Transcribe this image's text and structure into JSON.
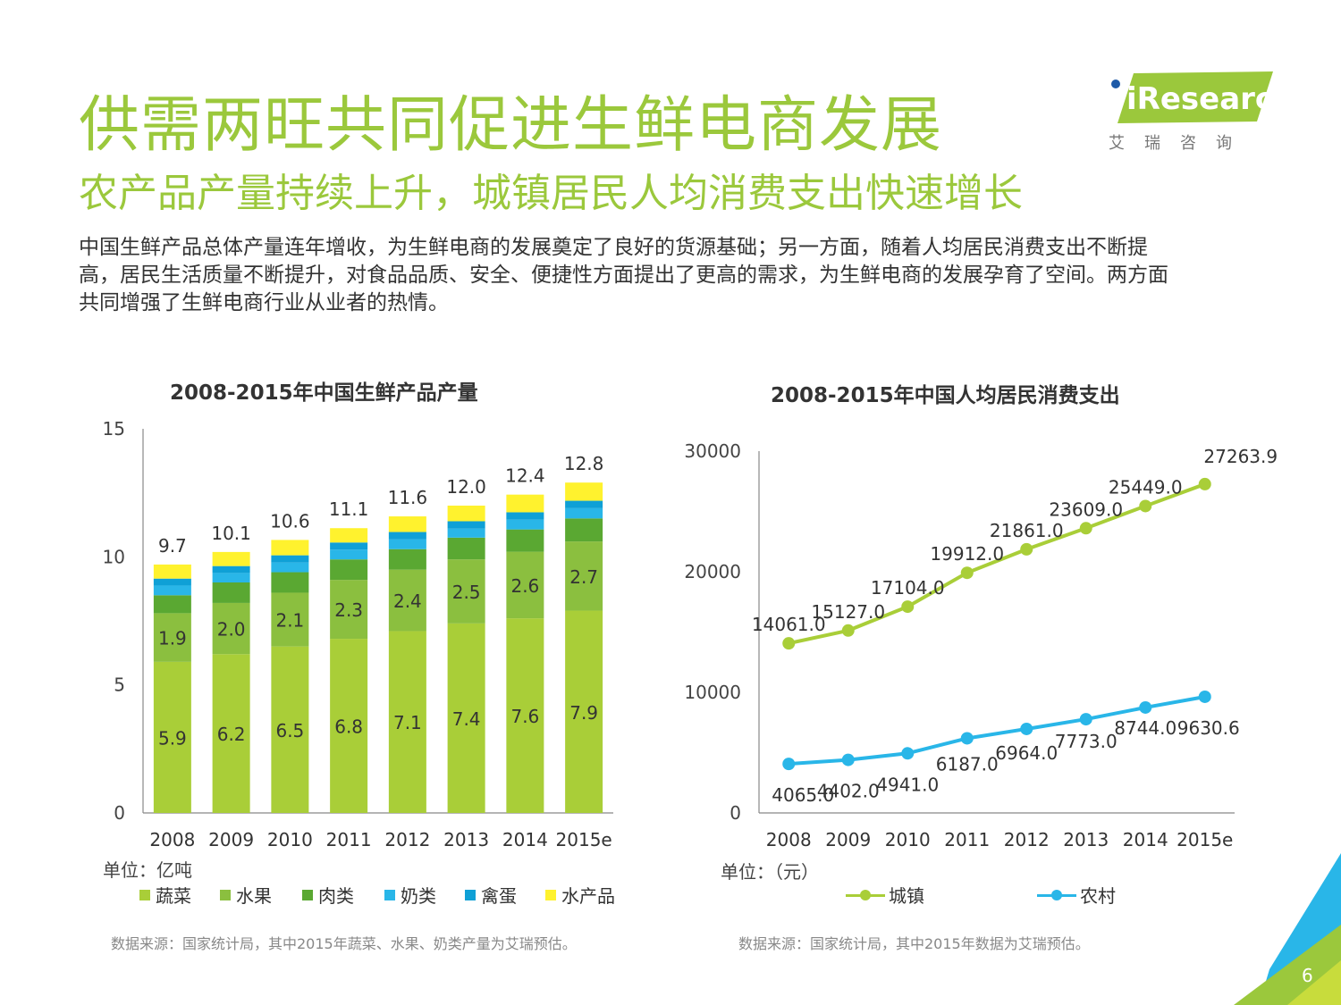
{
  "header": {
    "title": "供需两旺共同促进生鲜电商发展",
    "subtitle": "农产品产量持续上升，城镇居民人均消费支出快速增长",
    "paragraph_lines": [
      "中国生鲜产品总体产量连年增收，为生鲜电商的发展奠定了良好的货源基础；另一方面，随着人均居民消费支出不断提",
      "高，居民生活质量不断提升，对食品品质、安全、便捷性方面提出了更高的需求，为生鲜电商的发展孕育了空间。两方面",
      "共同增强了生鲜电商行业从业者的热情。"
    ]
  },
  "logo": {
    "text": "iResearch",
    "subtext": "艾瑞咨询"
  },
  "colors": {
    "accent": "#9bc83c",
    "vegetables": "#a9ce38",
    "fruit": "#8bbf3f",
    "meat": "#5aa832",
    "dairy": "#29b6e8",
    "eggs": "#0fa0d6",
    "aquatic": "#fff22e",
    "urban": "#a9ce38",
    "rural": "#29b6e8"
  },
  "page_number": "6",
  "left": {
    "unit": "单位：亿吨",
    "source": "数据来源：国家统计局，其中2015年蔬菜、水果、奶类产量为艾瑞预估。"
  },
  "right": {
    "unit": "单位：（元）",
    "source": "数据来源：国家统计局，其中2015年数据为艾瑞预估。"
  },
  "chart_data": [
    {
      "type": "bar",
      "stacked": true,
      "title": "2008-2015年中国生鲜产品产量",
      "categories": [
        "2008",
        "2009",
        "2010",
        "2011",
        "2012",
        "2013",
        "2014",
        "2015e"
      ],
      "ylim": [
        0,
        15
      ],
      "yticks": [
        0,
        5,
        10,
        15
      ],
      "series": [
        {
          "name": "蔬菜",
          "values": [
            5.9,
            6.2,
            6.5,
            6.8,
            7.1,
            7.4,
            7.6,
            7.9
          ],
          "labeled": true
        },
        {
          "name": "水果",
          "values": [
            1.9,
            2.0,
            2.1,
            2.3,
            2.4,
            2.5,
            2.6,
            2.7
          ],
          "labeled": true
        },
        {
          "name": "肉类",
          "values": [
            0.7,
            0.8,
            0.8,
            0.8,
            0.8,
            0.85,
            0.87,
            0.9
          ],
          "labeled": false
        },
        {
          "name": "奶类",
          "values": [
            0.38,
            0.37,
            0.38,
            0.38,
            0.38,
            0.35,
            0.38,
            0.4
          ],
          "labeled": false
        },
        {
          "name": "禽蛋",
          "values": [
            0.27,
            0.27,
            0.28,
            0.28,
            0.29,
            0.29,
            0.29,
            0.29
          ],
          "labeled": false
        },
        {
          "name": "水产品",
          "values": [
            0.55,
            0.55,
            0.6,
            0.56,
            0.61,
            0.61,
            0.69,
            0.71
          ],
          "labeled": false
        }
      ],
      "totals": [
        9.7,
        10.1,
        10.6,
        11.1,
        11.6,
        12.0,
        12.4,
        12.8
      ],
      "legend_position": "bottom"
    },
    {
      "type": "line",
      "title": "2008-2015年中国人均居民消费支出",
      "x": [
        "2008",
        "2009",
        "2010",
        "2011",
        "2012",
        "2013",
        "2014",
        "2015e"
      ],
      "ylim": [
        0,
        30000
      ],
      "yticks": [
        0,
        10000,
        20000,
        30000
      ],
      "series": [
        {
          "name": "城镇",
          "values": [
            14061.0,
            15127.0,
            17104.0,
            19912.0,
            21861.0,
            23609.0,
            25449.0,
            27263.9
          ],
          "labels": [
            "14061.0",
            "15127.0",
            "17104.0",
            "19912.0",
            "21861.0",
            "23609.0",
            "25449.0",
            "27263.9"
          ]
        },
        {
          "name": "农村",
          "values": [
            4065.0,
            4402.0,
            4941.0,
            6187.0,
            6964.0,
            7773.0,
            8744.0,
            9630.6
          ],
          "labels": [
            "4065.0",
            "4402.0",
            "4941.0",
            "6187.0",
            "6964.0",
            "7773.0",
            "8744.0",
            "9630.6"
          ]
        }
      ],
      "legend_position": "bottom"
    }
  ]
}
